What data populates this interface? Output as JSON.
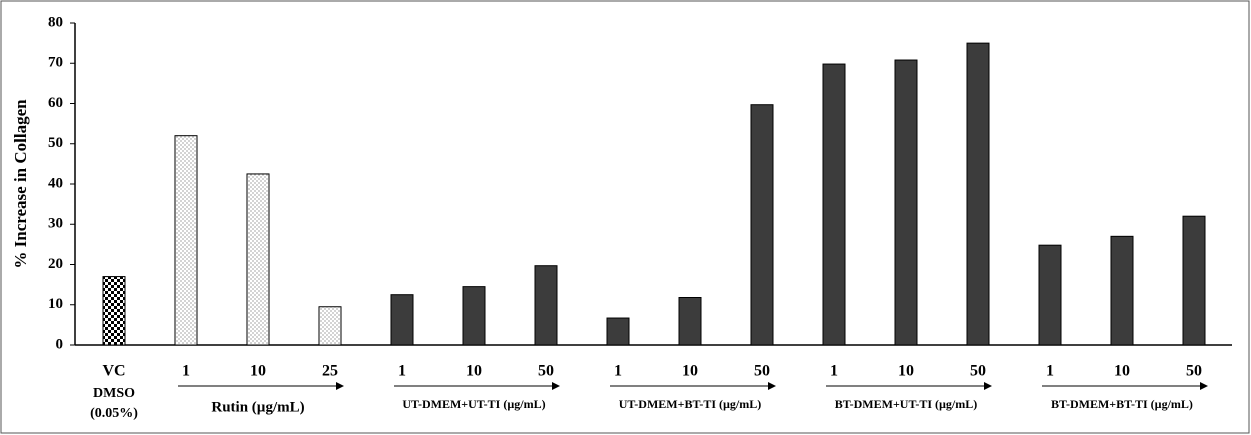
{
  "chart_data": {
    "type": "bar",
    "y_label": "% Increase in Collagen",
    "categories": [
      "VC",
      "1",
      "10",
      "25",
      "1",
      "10",
      "50",
      "1",
      "10",
      "50",
      "1",
      "10",
      "50",
      "1",
      "10",
      "50"
    ],
    "category_notes": [
      "DMSO",
      "(0.05%)"
    ],
    "groups": [
      "Rutin (µg/mL)",
      "UT-DMEM+UT-TI (µg/mL)",
      "UT-DMEM+BT-TI (µg/mL)",
      "BT-DMEM+UT-TI (µg/mL)",
      "BT-DMEM+BT-TI (µg/mL)"
    ],
    "values": [
      17,
      52,
      42.5,
      9.5,
      12.5,
      14.5,
      19.7,
      6.7,
      11.8,
      59.7,
      69.8,
      70.8,
      75.0,
      24.8,
      27.0,
      32.0
    ],
    "fills": [
      "checker",
      "dotted",
      "dotted",
      "dotted",
      "#3c3c3c",
      "#3c3c3c",
      "#3c3c3c",
      "#3c3c3c",
      "#3c3c3c",
      "#3c3c3c",
      "#3c3c3c",
      "#3c3c3c",
      "#3c3c3c",
      "#3c3c3c",
      "#3c3c3c",
      "#3c3c3c"
    ],
    "ylim": [
      0,
      80
    ],
    "yticks": [
      0,
      10,
      20,
      30,
      40,
      50,
      60,
      70,
      80
    ]
  }
}
